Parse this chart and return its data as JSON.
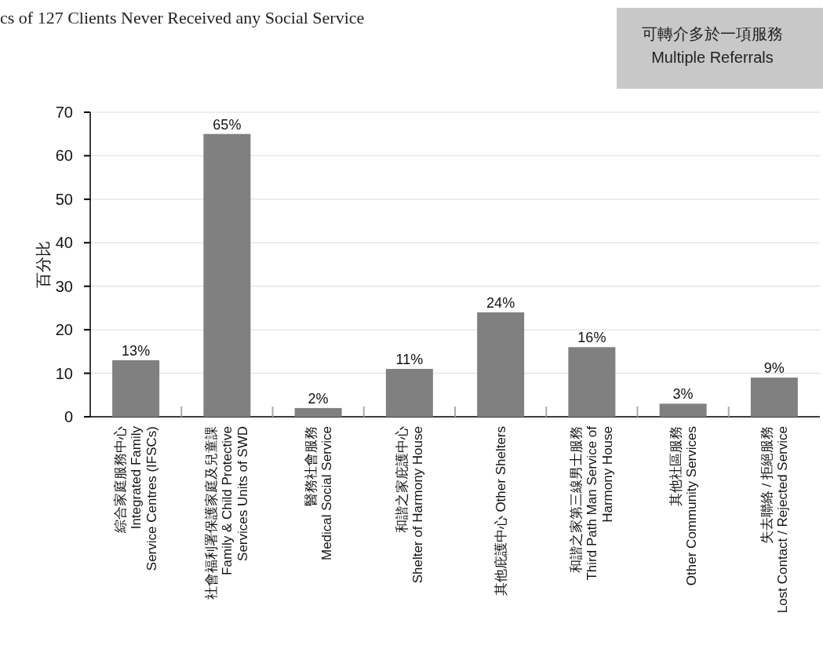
{
  "chart_data": {
    "type": "bar",
    "title": "cs of 127 Clients Never Received any Social Service",
    "ylabel": "百分比",
    "categories": [
      "綜合家庭服務中心\nIntegrated Family\nService Centres (IFSCs)",
      "社會福利署保護家庭及兒童課\nFamily & Child Protective\nServices Units of SWD",
      "醫務社會服務\nMedical Social Service",
      "和諧之家庇護中心\nShelter of Harmony House",
      "其他庇護中心 Other Shelters",
      "和諧之家第三線男士服務\nThird Path Man Service of\nHarmony House",
      "其他社區服務\nOther Community Services",
      "失去聯絡 / 拒絕服務\nLost Contact / Rejected Service"
    ],
    "values": [
      13,
      65,
      2,
      11,
      24,
      16,
      3,
      9
    ],
    "value_labels": [
      "13%",
      "65%",
      "2%",
      "11%",
      "24%",
      "16%",
      "3%",
      "9%"
    ],
    "color": "#808080",
    "ylim": [
      0,
      70
    ],
    "yticks": [
      0,
      10,
      20,
      30,
      40,
      50,
      60,
      70
    ],
    "grid": "y",
    "annotations": [
      "可轉介多於一項服務\nMultiple Referrals"
    ]
  }
}
